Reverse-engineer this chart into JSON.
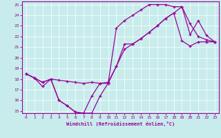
{
  "xlabel": "Windchill (Refroidissement éolien,°C)",
  "bg_color": "#c8ecec",
  "line_color": "#990099",
  "grid_color": "#ffffff",
  "xlim": [
    -0.5,
    23.5
  ],
  "ylim": [
    14.8,
    25.3
  ],
  "xticks": [
    0,
    1,
    2,
    3,
    4,
    5,
    6,
    7,
    8,
    9,
    10,
    11,
    12,
    13,
    14,
    15,
    16,
    17,
    18,
    19,
    20,
    21,
    22,
    23
  ],
  "yticks": [
    15,
    16,
    17,
    18,
    19,
    20,
    21,
    22,
    23,
    24,
    25
  ],
  "curve1_x": [
    0,
    1,
    2,
    3,
    4,
    5,
    6,
    7,
    8,
    9,
    10,
    11,
    12,
    13,
    14,
    15,
    16,
    17,
    18,
    19,
    20,
    21,
    22,
    23
  ],
  "curve1_y": [
    18.5,
    18.1,
    17.3,
    18.0,
    16.0,
    15.5,
    14.9,
    14.8,
    14.8,
    16.4,
    17.6,
    22.8,
    23.5,
    24.0,
    24.5,
    25.0,
    25.0,
    25.0,
    24.8,
    24.8,
    22.2,
    23.5,
    22.1,
    21.5
  ],
  "curve2_x": [
    0,
    1,
    2,
    3,
    4,
    5,
    6,
    7,
    8,
    9,
    10,
    11,
    12,
    13,
    14,
    15,
    16,
    17,
    18,
    19,
    20,
    21,
    22,
    23
  ],
  "curve2_y": [
    18.5,
    18.1,
    17.7,
    18.0,
    17.9,
    17.8,
    17.7,
    17.6,
    17.7,
    17.6,
    17.7,
    19.2,
    20.8,
    21.3,
    21.8,
    22.4,
    23.0,
    23.7,
    24.2,
    21.6,
    21.1,
    21.5,
    21.5,
    21.5
  ],
  "curve3_x": [
    0,
    1,
    2,
    3,
    4,
    5,
    6,
    7,
    8,
    9,
    10,
    11,
    12,
    13,
    14,
    15,
    16,
    17,
    18,
    19,
    20,
    21,
    22,
    23
  ],
  "curve3_y": [
    18.5,
    18.1,
    17.7,
    18.0,
    16.0,
    15.5,
    14.9,
    14.8,
    16.4,
    17.6,
    17.6,
    19.2,
    21.3,
    21.3,
    21.8,
    22.4,
    23.0,
    23.7,
    24.2,
    24.8,
    23.2,
    22.0,
    21.7,
    21.5
  ]
}
